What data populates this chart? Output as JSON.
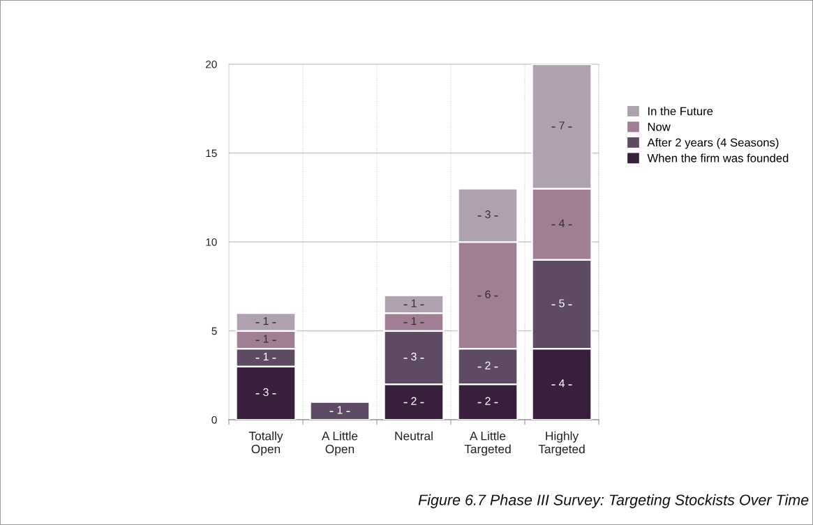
{
  "chart_data": {
    "type": "bar",
    "stacked": true,
    "categories": [
      "Totally\nOpen",
      "A Little\nOpen",
      "Neutral",
      "A Little\nTargeted",
      "Highly\nTargeted"
    ],
    "series": [
      {
        "name": "When the firm was founded",
        "color": "#38203c",
        "values": [
          3,
          null,
          2,
          2,
          4
        ]
      },
      {
        "name": "After 2 years (4 Seasons)",
        "color": "#5e4a62",
        "values": [
          1,
          1,
          3,
          2,
          5
        ]
      },
      {
        "name": "Now",
        "color": "#a07e93",
        "values": [
          1,
          null,
          1,
          6,
          4
        ]
      },
      {
        "name": "In the Future",
        "color": "#afa1b0",
        "values": [
          1,
          null,
          1,
          3,
          7
        ]
      }
    ],
    "data_labels": true,
    "ylim": [
      0,
      20
    ],
    "yticks": [
      0,
      5,
      10,
      15,
      20
    ],
    "grid": true,
    "legend": "right",
    "annotations": [
      "Figure 6.7 Phase III Survey: Targeting Stockists Over Time"
    ]
  }
}
